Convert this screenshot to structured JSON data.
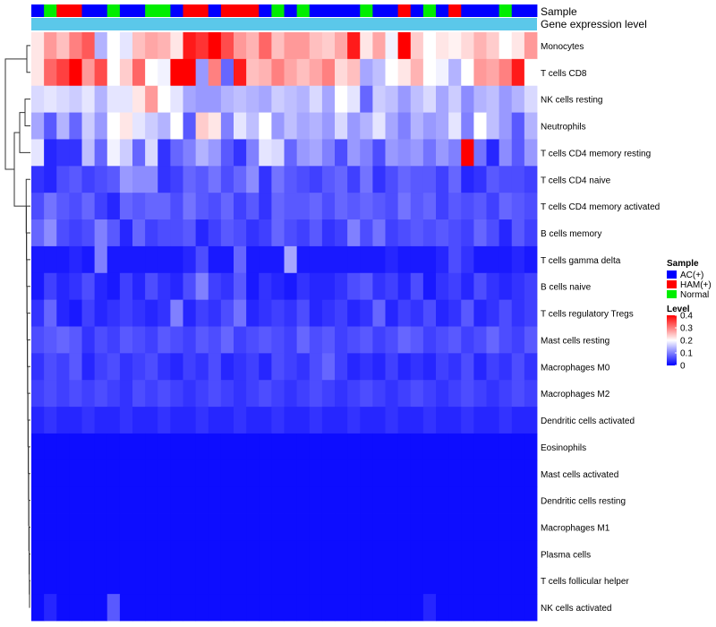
{
  "chart_data": {
    "type": "heatmap",
    "title": "",
    "annotation_tracks": [
      "Sample",
      "Gene expression level"
    ],
    "annotation_track_colors": {
      "Gene expression level": "#5bc8ea"
    },
    "sample_groups": [
      "AC(+)",
      "Normal",
      "HAM(+)",
      "HAM(+)",
      "AC(+)",
      "AC(+)",
      "Normal",
      "AC(+)",
      "AC(+)",
      "Normal",
      "Normal",
      "AC(+)",
      "HAM(+)",
      "HAM(+)",
      "AC(+)",
      "HAM(+)",
      "HAM(+)",
      "HAM(+)",
      "AC(+)",
      "Normal",
      "AC(+)",
      "Normal",
      "AC(+)",
      "AC(+)",
      "AC(+)",
      "AC(+)",
      "Normal",
      "AC(+)",
      "AC(+)",
      "HAM(+)",
      "AC(+)",
      "Normal",
      "AC(+)",
      "HAM(+)",
      "AC(+)",
      "AC(+)",
      "AC(+)",
      "Normal",
      "AC(+)",
      "AC(+)"
    ],
    "rows": [
      "Monocytes",
      "T cells CD8",
      "NK cells resting",
      "Neutrophils",
      "T cells CD4 memory resting",
      "T cells CD4 naive",
      "T cells CD4 memory activated",
      "B cells memory",
      "T cells gamma delta",
      "B cells naive",
      "T cells regulatory  Tregs",
      "Mast cells resting",
      "Macrophages M0",
      "Macrophages M2",
      "Dendritic cells activated",
      "Eosinophils",
      "Mast cells activated",
      "Dendritic cells resting",
      "Macrophages M1",
      "Plasma cells",
      "T cells follicular helper",
      "NK cells activated"
    ],
    "values": [
      [
        0.22,
        0.28,
        0.25,
        0.3,
        0.33,
        0.14,
        0.2,
        0.18,
        0.25,
        0.27,
        0.26,
        0.22,
        0.38,
        0.36,
        0.4,
        0.34,
        0.28,
        0.26,
        0.32,
        0.25,
        0.28,
        0.28,
        0.25,
        0.24,
        0.27,
        0.38,
        0.22,
        0.27,
        0.19,
        0.4,
        0.24,
        0.2,
        0.22,
        0.21,
        0.23,
        0.26,
        0.24,
        0.2,
        0.22,
        0.28
      ],
      [
        0.22,
        0.32,
        0.35,
        0.42,
        0.28,
        0.34,
        0.2,
        0.24,
        0.32,
        0.2,
        0.19,
        0.42,
        0.4,
        0.12,
        0.3,
        0.08,
        0.38,
        0.25,
        0.26,
        0.3,
        0.27,
        0.25,
        0.27,
        0.3,
        0.23,
        0.25,
        0.13,
        0.15,
        0.2,
        0.22,
        0.26,
        0.2,
        0.19,
        0.14,
        0.2,
        0.28,
        0.27,
        0.3,
        0.38,
        0.2
      ],
      [
        0.17,
        0.18,
        0.17,
        0.16,
        0.18,
        0.14,
        0.18,
        0.18,
        0.22,
        0.28,
        0.2,
        0.18,
        0.13,
        0.12,
        0.12,
        0.14,
        0.15,
        0.14,
        0.13,
        0.16,
        0.15,
        0.14,
        0.17,
        0.13,
        0.2,
        0.18,
        0.08,
        0.16,
        0.15,
        0.12,
        0.15,
        0.17,
        0.13,
        0.16,
        0.11,
        0.14,
        0.15,
        0.12,
        0.14,
        0.17
      ],
      [
        0.13,
        0.07,
        0.14,
        0.08,
        0.16,
        0.12,
        0.2,
        0.22,
        0.18,
        0.16,
        0.14,
        0.2,
        0.07,
        0.24,
        0.22,
        0.1,
        0.18,
        0.15,
        0.2,
        0.12,
        0.15,
        0.13,
        0.14,
        0.12,
        0.17,
        0.12,
        0.14,
        0.18,
        0.13,
        0.1,
        0.14,
        0.12,
        0.13,
        0.18,
        0.1,
        0.2,
        0.15,
        0.12,
        0.07,
        0.14
      ],
      [
        0.18,
        0.03,
        0.04,
        0.04,
        0.15,
        0.08,
        0.19,
        0.16,
        0.08,
        0.17,
        0.04,
        0.08,
        0.1,
        0.14,
        0.12,
        0.07,
        0.04,
        0.1,
        0.18,
        0.17,
        0.08,
        0.12,
        0.13,
        0.1,
        0.06,
        0.12,
        0.1,
        0.06,
        0.12,
        0.11,
        0.12,
        0.09,
        0.12,
        0.1,
        0.4,
        0.09,
        0.03,
        0.11,
        0.07,
        0.12
      ],
      [
        0.04,
        0.03,
        0.06,
        0.07,
        0.05,
        0.06,
        0.07,
        0.12,
        0.11,
        0.11,
        0.04,
        0.05,
        0.08,
        0.07,
        0.09,
        0.06,
        0.08,
        0.11,
        0.04,
        0.09,
        0.07,
        0.06,
        0.05,
        0.07,
        0.08,
        0.05,
        0.09,
        0.04,
        0.06,
        0.08,
        0.07,
        0.07,
        0.05,
        0.08,
        0.03,
        0.04,
        0.07,
        0.06,
        0.06,
        0.05
      ],
      [
        0.06,
        0.09,
        0.07,
        0.06,
        0.08,
        0.05,
        0.03,
        0.08,
        0.07,
        0.08,
        0.08,
        0.06,
        0.09,
        0.07,
        0.06,
        0.08,
        0.05,
        0.07,
        0.04,
        0.08,
        0.07,
        0.07,
        0.08,
        0.06,
        0.08,
        0.07,
        0.08,
        0.07,
        0.06,
        0.09,
        0.07,
        0.08,
        0.05,
        0.07,
        0.06,
        0.07,
        0.05,
        0.08,
        0.07,
        0.06
      ],
      [
        0.08,
        0.11,
        0.06,
        0.05,
        0.06,
        0.1,
        0.07,
        0.03,
        0.08,
        0.05,
        0.06,
        0.06,
        0.07,
        0.03,
        0.05,
        0.07,
        0.06,
        0.04,
        0.05,
        0.08,
        0.06,
        0.05,
        0.07,
        0.04,
        0.05,
        0.1,
        0.06,
        0.09,
        0.05,
        0.06,
        0.07,
        0.06,
        0.07,
        0.06,
        0.05,
        0.08,
        0.06,
        0.03,
        0.07,
        0.05
      ],
      [
        0.02,
        0.02,
        0.02,
        0.03,
        0.02,
        0.1,
        0.02,
        0.02,
        0.02,
        0.02,
        0.02,
        0.02,
        0.03,
        0.06,
        0.02,
        0.02,
        0.08,
        0.02,
        0.02,
        0.02,
        0.13,
        0.02,
        0.02,
        0.02,
        0.02,
        0.02,
        0.02,
        0.02,
        0.03,
        0.02,
        0.02,
        0.02,
        0.03,
        0.06,
        0.04,
        0.02,
        0.02,
        0.02,
        0.03,
        0.02
      ],
      [
        0.02,
        0.05,
        0.03,
        0.04,
        0.06,
        0.03,
        0.02,
        0.05,
        0.03,
        0.06,
        0.04,
        0.03,
        0.06,
        0.1,
        0.05,
        0.04,
        0.07,
        0.02,
        0.04,
        0.03,
        0.02,
        0.04,
        0.03,
        0.03,
        0.04,
        0.06,
        0.07,
        0.04,
        0.05,
        0.03,
        0.06,
        0.02,
        0.04,
        0.05,
        0.03,
        0.06,
        0.04,
        0.03,
        0.04,
        0.05
      ],
      [
        0.04,
        0.08,
        0.03,
        0.02,
        0.05,
        0.03,
        0.04,
        0.05,
        0.04,
        0.03,
        0.04,
        0.1,
        0.03,
        0.05,
        0.04,
        0.06,
        0.09,
        0.03,
        0.04,
        0.05,
        0.04,
        0.06,
        0.03,
        0.04,
        0.05,
        0.03,
        0.04,
        0.08,
        0.03,
        0.05,
        0.04,
        0.06,
        0.03,
        0.04,
        0.07,
        0.03,
        0.04,
        0.06,
        0.04,
        0.05
      ],
      [
        0.06,
        0.07,
        0.08,
        0.07,
        0.04,
        0.06,
        0.05,
        0.07,
        0.06,
        0.05,
        0.07,
        0.06,
        0.05,
        0.07,
        0.06,
        0.08,
        0.05,
        0.06,
        0.07,
        0.06,
        0.05,
        0.08,
        0.06,
        0.07,
        0.05,
        0.06,
        0.07,
        0.05,
        0.06,
        0.08,
        0.07,
        0.05,
        0.06,
        0.07,
        0.05,
        0.06,
        0.08,
        0.06,
        0.05,
        0.07
      ],
      [
        0.04,
        0.06,
        0.05,
        0.07,
        0.03,
        0.05,
        0.06,
        0.04,
        0.05,
        0.06,
        0.04,
        0.03,
        0.05,
        0.04,
        0.06,
        0.03,
        0.04,
        0.05,
        0.03,
        0.06,
        0.05,
        0.04,
        0.06,
        0.08,
        0.05,
        0.03,
        0.04,
        0.03,
        0.05,
        0.03,
        0.04,
        0.03,
        0.05,
        0.04,
        0.06,
        0.03,
        0.05,
        0.04,
        0.06,
        0.04
      ],
      [
        0.05,
        0.06,
        0.05,
        0.06,
        0.05,
        0.06,
        0.05,
        0.04,
        0.06,
        0.05,
        0.06,
        0.05,
        0.04,
        0.05,
        0.06,
        0.05,
        0.04,
        0.05,
        0.06,
        0.05,
        0.04,
        0.05,
        0.06,
        0.05,
        0.04,
        0.05,
        0.06,
        0.05,
        0.04,
        0.05,
        0.06,
        0.05,
        0.04,
        0.05,
        0.06,
        0.05,
        0.04,
        0.05,
        0.06,
        0.05
      ],
      [
        0.03,
        0.04,
        0.03,
        0.03,
        0.04,
        0.03,
        0.03,
        0.04,
        0.03,
        0.03,
        0.04,
        0.03,
        0.03,
        0.04,
        0.03,
        0.03,
        0.04,
        0.03,
        0.03,
        0.04,
        0.03,
        0.03,
        0.04,
        0.03,
        0.03,
        0.04,
        0.03,
        0.03,
        0.04,
        0.03,
        0.03,
        0.04,
        0.03,
        0.03,
        0.04,
        0.03,
        0.03,
        0.04,
        0.03,
        0.03
      ],
      [
        0.01,
        0.01,
        0.01,
        0.01,
        0.01,
        0.01,
        0.01,
        0.01,
        0.01,
        0.01,
        0.01,
        0.01,
        0.01,
        0.01,
        0.01,
        0.01,
        0.01,
        0.01,
        0.01,
        0.01,
        0.01,
        0.01,
        0.01,
        0.01,
        0.01,
        0.01,
        0.01,
        0.01,
        0.01,
        0.01,
        0.01,
        0.01,
        0.01,
        0.01,
        0.01,
        0.01,
        0.01,
        0.01,
        0.01,
        0.01
      ],
      [
        0.01,
        0.01,
        0.01,
        0.01,
        0.01,
        0.01,
        0.01,
        0.01,
        0.01,
        0.01,
        0.01,
        0.01,
        0.01,
        0.01,
        0.01,
        0.01,
        0.01,
        0.01,
        0.01,
        0.01,
        0.01,
        0.01,
        0.01,
        0.01,
        0.01,
        0.01,
        0.01,
        0.01,
        0.01,
        0.01,
        0.01,
        0.01,
        0.01,
        0.01,
        0.01,
        0.01,
        0.01,
        0.01,
        0.01,
        0.01
      ],
      [
        0.01,
        0.01,
        0.01,
        0.01,
        0.01,
        0.01,
        0.01,
        0.01,
        0.01,
        0.01,
        0.01,
        0.01,
        0.01,
        0.01,
        0.01,
        0.01,
        0.01,
        0.01,
        0.01,
        0.01,
        0.01,
        0.01,
        0.01,
        0.01,
        0.01,
        0.01,
        0.01,
        0.01,
        0.01,
        0.01,
        0.01,
        0.01,
        0.01,
        0.01,
        0.01,
        0.01,
        0.01,
        0.01,
        0.01,
        0.01
      ],
      [
        0.01,
        0.01,
        0.01,
        0.01,
        0.01,
        0.01,
        0.01,
        0.01,
        0.01,
        0.01,
        0.01,
        0.01,
        0.01,
        0.01,
        0.01,
        0.01,
        0.01,
        0.01,
        0.01,
        0.01,
        0.01,
        0.01,
        0.01,
        0.01,
        0.01,
        0.01,
        0.01,
        0.01,
        0.01,
        0.01,
        0.01,
        0.01,
        0.01,
        0.01,
        0.01,
        0.01,
        0.01,
        0.01,
        0.01,
        0.01
      ],
      [
        0.01,
        0.01,
        0.01,
        0.01,
        0.01,
        0.01,
        0.01,
        0.01,
        0.01,
        0.01,
        0.01,
        0.01,
        0.01,
        0.01,
        0.01,
        0.01,
        0.01,
        0.01,
        0.01,
        0.01,
        0.01,
        0.01,
        0.01,
        0.01,
        0.01,
        0.01,
        0.01,
        0.01,
        0.01,
        0.01,
        0.01,
        0.01,
        0.01,
        0.01,
        0.01,
        0.01,
        0.01,
        0.01,
        0.01,
        0.01
      ],
      [
        0.01,
        0.01,
        0.01,
        0.01,
        0.01,
        0.01,
        0.01,
        0.01,
        0.01,
        0.01,
        0.01,
        0.01,
        0.01,
        0.01,
        0.01,
        0.01,
        0.01,
        0.01,
        0.01,
        0.01,
        0.01,
        0.01,
        0.01,
        0.01,
        0.01,
        0.01,
        0.01,
        0.01,
        0.01,
        0.01,
        0.01,
        0.01,
        0.01,
        0.01,
        0.01,
        0.01,
        0.01,
        0.01,
        0.01,
        0.01
      ],
      [
        0.01,
        0.03,
        0.01,
        0.01,
        0.01,
        0.01,
        0.07,
        0.01,
        0.01,
        0.01,
        0.01,
        0.01,
        0.01,
        0.01,
        0.01,
        0.01,
        0.01,
        0.01,
        0.01,
        0.01,
        0.01,
        0.01,
        0.01,
        0.01,
        0.01,
        0.01,
        0.01,
        0.01,
        0.01,
        0.01,
        0.01,
        0.03,
        0.01,
        0.01,
        0.01,
        0.01,
        0.01,
        0.01,
        0.01,
        0.01
      ]
    ],
    "color_scale": {
      "min": 0,
      "max": 0.4,
      "colors": [
        "#0000ff",
        "#ffffff",
        "#ff0000"
      ],
      "mid": 0.2
    },
    "legends": {
      "sample": {
        "title": "Sample",
        "entries": [
          {
            "label": "AC(+)",
            "color": "#0000ff"
          },
          {
            "label": "HAM(+)",
            "color": "#ff0000"
          },
          {
            "label": "Normal",
            "color": "#00ee00"
          }
        ]
      },
      "level": {
        "title": "Level",
        "ticks": [
          "0.4",
          "0.3",
          "0.2",
          "0.1",
          "0"
        ],
        "tick_values": [
          0.4,
          0.3,
          0.2,
          0.1,
          0
        ]
      }
    },
    "dendrogram": "row",
    "legend_position": "right"
  }
}
